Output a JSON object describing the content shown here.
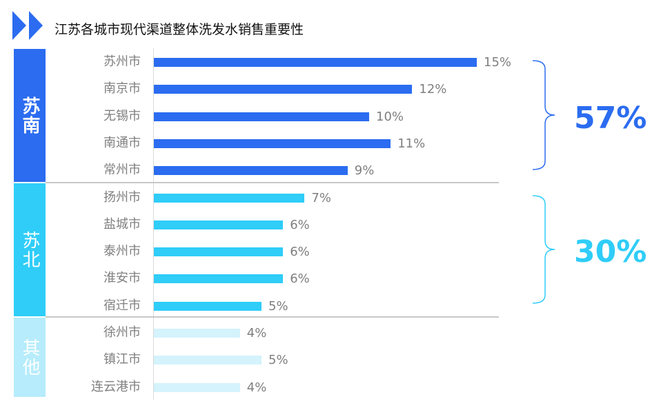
{
  "title": "江苏各城市现代渠道整体洗发水销售重要性",
  "groups": {
    "south": {
      "label": "苏南",
      "total": "57%"
    },
    "north": {
      "label": "苏北",
      "total": "30%"
    },
    "other": {
      "label": "其他"
    }
  },
  "colors": {
    "south": "#2b6cf0",
    "north": "#2fcdf8",
    "other": "#d4f3fc",
    "brace_south": "#2b6cf0",
    "brace_north": "#2fcdf8"
  },
  "chart_data": {
    "type": "bar",
    "orientation": "horizontal",
    "title": "江苏各城市现代渠道整体洗发水销售重要性",
    "categories": [
      "苏州市",
      "南京市",
      "无锡市",
      "南通市",
      "常州市",
      "扬州市",
      "盐城市",
      "泰州市",
      "淮安市",
      "宿迁市",
      "徐州市",
      "镇江市",
      "连云港市"
    ],
    "values": [
      15,
      12,
      10,
      11,
      9,
      7,
      6,
      6,
      6,
      5,
      4,
      5,
      4
    ],
    "value_labels": [
      "15%",
      "12%",
      "10%",
      "11%",
      "9%",
      "7%",
      "6%",
      "6%",
      "6%",
      "5%",
      "4%",
      "5%",
      "4%"
    ],
    "groups": [
      "south",
      "south",
      "south",
      "south",
      "south",
      "north",
      "north",
      "north",
      "north",
      "north",
      "other",
      "other",
      "other"
    ],
    "unit": "%"
  }
}
